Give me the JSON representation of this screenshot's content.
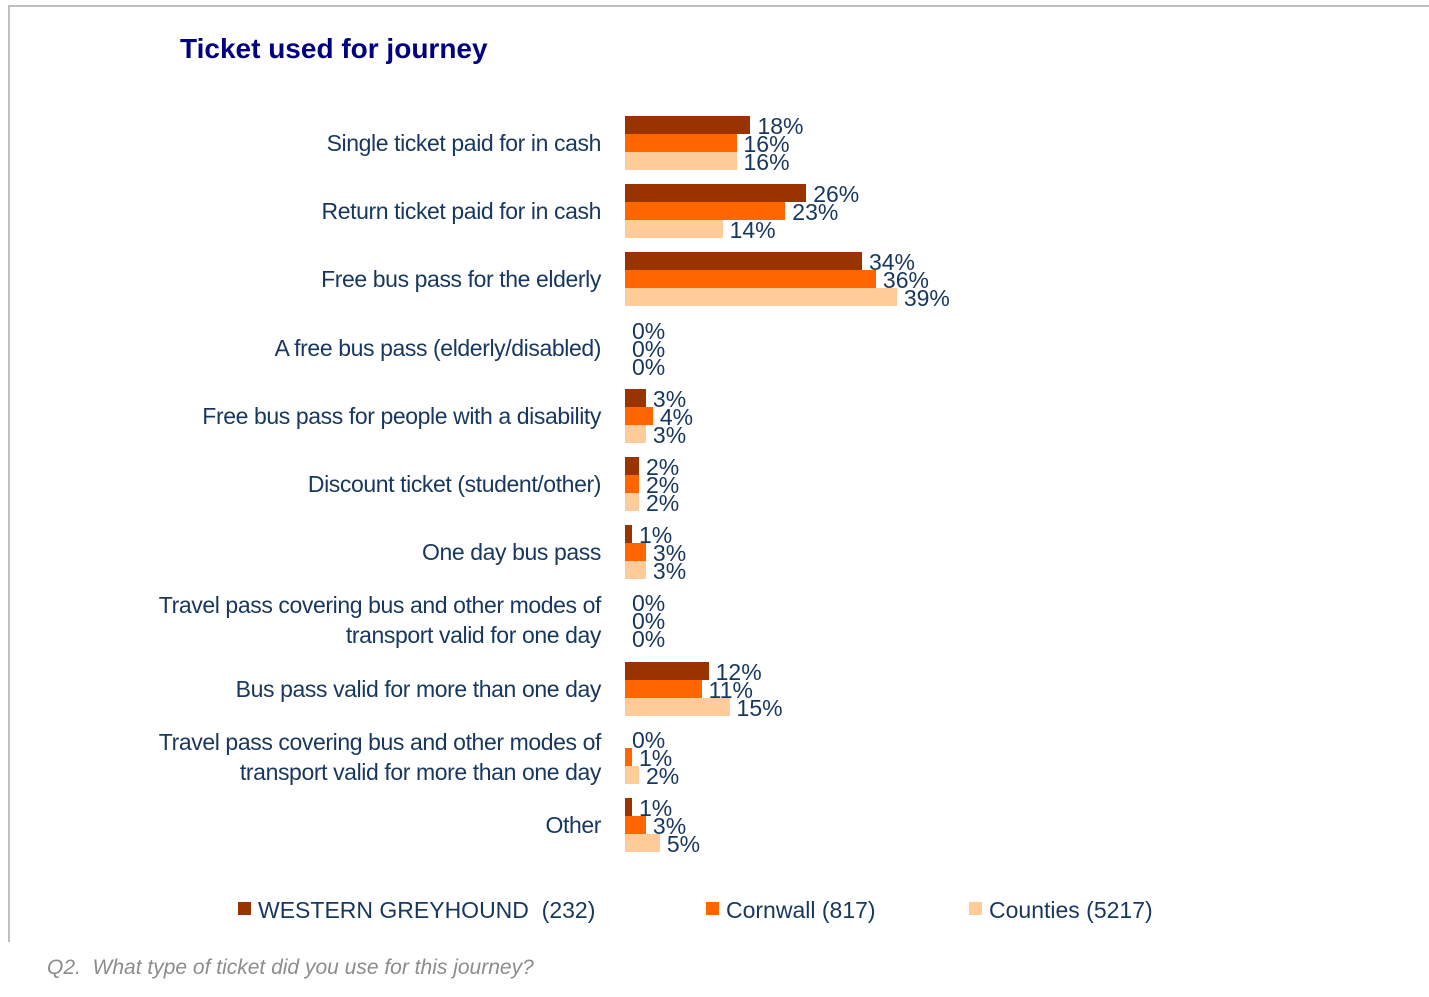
{
  "chart_data": {
    "type": "bar",
    "orientation": "horizontal",
    "title": "Ticket used for journey",
    "footnote": "Q2.  What type of ticket did you use for this journey?",
    "categories": [
      "Single ticket paid for in cash",
      "Return ticket paid for in cash",
      "Free bus pass for the elderly",
      "A free bus pass (elderly/disabled)",
      "Free bus pass for people with a disability",
      "Discount ticket (student/other)",
      "One day bus pass",
      "Travel pass covering bus and other modes of transport valid for one day",
      "Bus pass valid for more than one day",
      "Travel pass covering bus and other modes of transport valid for more than one day",
      "Other"
    ],
    "series": [
      {
        "name": "WESTERN GREYHOUND  (232)",
        "color": "#993300",
        "values": [
          18,
          26,
          34,
          0,
          3,
          2,
          1,
          0,
          12,
          0,
          1
        ],
        "value_labels": [
          "18%",
          "26%",
          "34%",
          "0%",
          "3%",
          "2%",
          "1%",
          "0%",
          "12%",
          "0%",
          "1%"
        ]
      },
      {
        "name": "Cornwall (817)",
        "color": "#ff6600",
        "values": [
          16,
          23,
          36,
          0,
          4,
          2,
          3,
          0,
          11,
          1,
          3
        ],
        "value_labels": [
          "16%",
          "23%",
          "36%",
          "0%",
          "4%",
          "2%",
          "3%",
          "0%",
          "11%",
          "1%",
          "3%"
        ]
      },
      {
        "name": "Counties (5217)",
        "color": "#ffcc99",
        "values": [
          16,
          14,
          39,
          0,
          3,
          2,
          3,
          0,
          15,
          2,
          5
        ],
        "value_labels": [
          "16%",
          "14%",
          "39%",
          "0%",
          "3%",
          "2%",
          "3%",
          "0%",
          "15%",
          "2%",
          "5%"
        ]
      }
    ],
    "legend": "bottom"
  }
}
